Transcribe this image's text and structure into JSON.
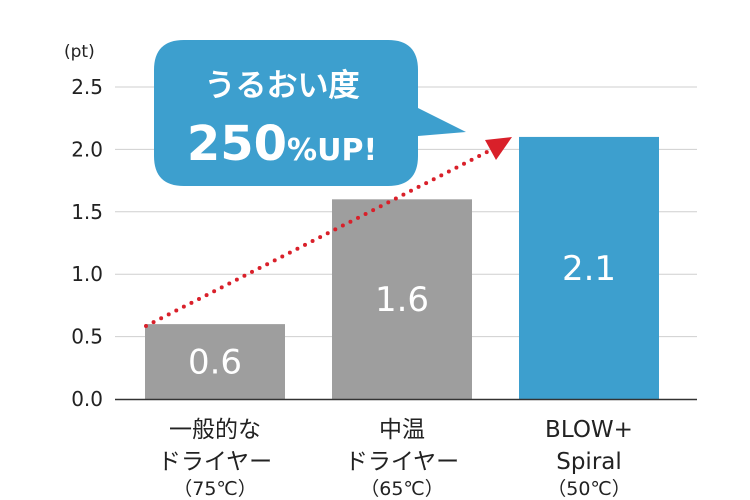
{
  "chart_data": {
    "type": "bar",
    "unit_label": "(pt)",
    "categories": [
      {
        "lines": [
          "一般的な",
          "ドライヤー"
        ],
        "sub": "（75℃）"
      },
      {
        "lines": [
          "中温",
          "ドライヤー"
        ],
        "sub": "（65℃）"
      },
      {
        "lines": [
          "BLOW+",
          "Spiral"
        ],
        "sub": "（50℃）"
      }
    ],
    "values": [
      0.6,
      1.6,
      2.1
    ],
    "value_labels": [
      "0.6",
      "1.6",
      "2.1"
    ],
    "bar_colors": [
      "#9e9e9e",
      "#9e9e9e",
      "#3d9fce"
    ],
    "ylim": [
      0,
      2.5
    ],
    "yticks": [
      "0.0",
      "0.5",
      "1.0",
      "1.5",
      "2.0",
      "2.5"
    ],
    "grid": true,
    "callout": {
      "line1": "うるおい度",
      "big": "250",
      "small": "%UP!",
      "color": "#3d9fce"
    },
    "trend_arrow_color": "#d9202a"
  }
}
